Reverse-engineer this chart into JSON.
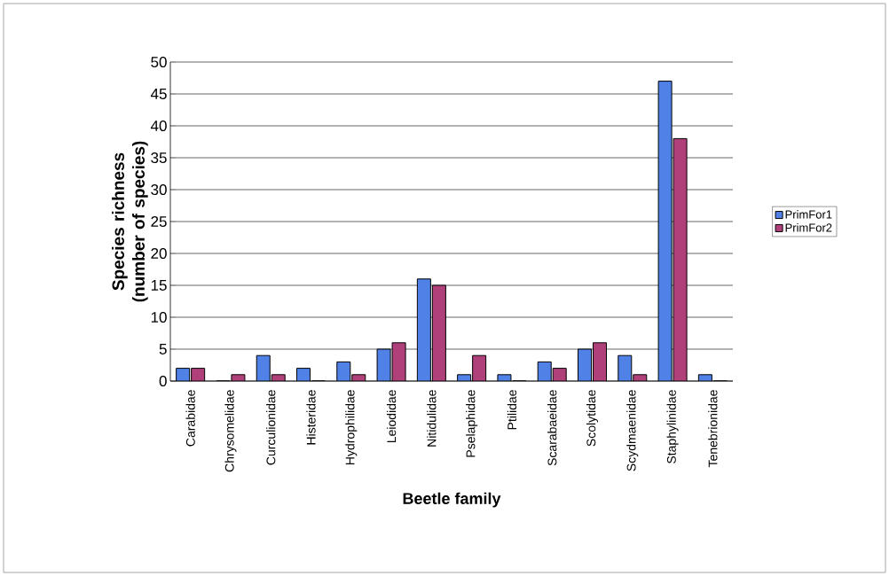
{
  "chart_data": {
    "type": "bar",
    "xlabel": "Beetle family",
    "ylabel": "Species richness (number of species)",
    "categories": [
      "Carabidae",
      "Chrysomelidae",
      "Curculionidae",
      "Histeridae",
      "Hydrophilidae",
      "Leiodidae",
      "Nitidulidae",
      "Pselaphidae",
      "Ptilidae",
      "Scarabaeidae",
      "Scolytidae",
      "Scydmaenidae",
      "Staphylinidae",
      "Tenebrionidae"
    ],
    "series": [
      {
        "name": "PrimFor1",
        "color": "#4f81e6",
        "values": [
          2,
          0,
          4,
          2,
          3,
          5,
          16,
          1,
          1,
          3,
          5,
          4,
          47,
          1
        ]
      },
      {
        "name": "PrimFor2",
        "color": "#b0407a",
        "values": [
          2,
          1,
          1,
          0,
          1,
          6,
          15,
          4,
          0,
          2,
          6,
          1,
          38,
          0
        ]
      }
    ],
    "ylim": [
      0,
      50
    ],
    "yticks": [
      0,
      5,
      10,
      15,
      20,
      25,
      30,
      35,
      40,
      45,
      50
    ],
    "grid": "y",
    "legend": "right"
  }
}
